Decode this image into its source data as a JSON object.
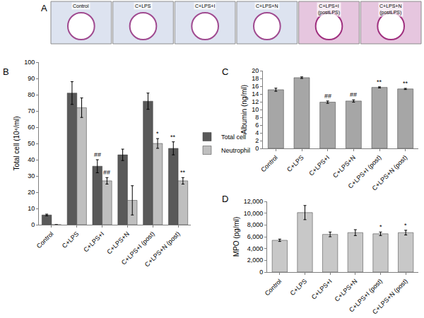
{
  "chart_data": [
    {
      "type": "bar",
      "panel_label": "B",
      "categories": [
        "Control",
        "C+LPS",
        "C+LPS+I",
        "C+LPS+N",
        "C+LPS+I (post)",
        "C+LPS+N (post)"
      ],
      "series": [
        {
          "name": "Total cell",
          "color": "#595959",
          "values": [
            6,
            81,
            36,
            43,
            76,
            47
          ],
          "errors": [
            0.5,
            7,
            4,
            3.5,
            5,
            4
          ]
        },
        {
          "name": "Neutrophil",
          "color": "#bfbfbf",
          "values": [
            0,
            72,
            27,
            15,
            50,
            27
          ],
          "errors": [
            0,
            6,
            2,
            9,
            3,
            2
          ]
        }
      ],
      "ylabel": "Total cell (10⁴/ml)",
      "ylim": [
        0,
        100
      ],
      "yticks": [
        0,
        10,
        20,
        30,
        40,
        50,
        60,
        70,
        80,
        90,
        100
      ],
      "grid": false,
      "legend": "right",
      "annotations": [
        {
          "category": "C+LPS+I",
          "series": "Total cell",
          "text": "##"
        },
        {
          "category": "C+LPS+I",
          "series": "Neutrophil",
          "text": "##"
        },
        {
          "category": "C+LPS+I (post)",
          "series": "Neutrophil",
          "text": "*"
        },
        {
          "category": "C+LPS+N (post)",
          "series": "Total cell",
          "text": "**"
        },
        {
          "category": "C+LPS+N (post)",
          "series": "Neutrophil",
          "text": "**"
        }
      ]
    },
    {
      "type": "bar",
      "panel_label": "C",
      "categories": [
        "Control",
        "C+LPS",
        "C+LPS+I",
        "C+LPS+N",
        "C+LPS+I (post)",
        "C+LPS+N (post)"
      ],
      "values": [
        15.1,
        18.2,
        11.9,
        12.2,
        15.7,
        15.3
      ],
      "errors": [
        0.4,
        0.2,
        0.3,
        0.3,
        0.15,
        0.15
      ],
      "color": "#a6a6a6",
      "ylabel": "Albumin (ng/ml)",
      "ylim": [
        0,
        20
      ],
      "yticks": [
        0,
        2,
        4,
        6,
        8,
        10,
        12,
        14,
        16,
        18,
        20
      ],
      "grid": false,
      "annotations": [
        {
          "category": "C+LPS+I",
          "text": "##"
        },
        {
          "category": "C+LPS+N",
          "text": "##"
        },
        {
          "category": "C+LPS+I (post)",
          "text": "**"
        },
        {
          "category": "C+LPS+N (post)",
          "text": "**"
        }
      ]
    },
    {
      "type": "bar",
      "panel_label": "D",
      "categories": [
        "Control",
        "C+LPS",
        "C+LPS+I",
        "C+LPS+N",
        "C+LPS+I (post)",
        "C+LPS+N (post)"
      ],
      "values": [
        5400,
        10100,
        6400,
        6700,
        6500,
        6700
      ],
      "errors": [
        200,
        1200,
        400,
        500,
        300,
        400
      ],
      "color": "#c8c8c8",
      "ylabel": "MPO (pg/ml)",
      "ylim": [
        0,
        12000
      ],
      "yticks": [
        0,
        {
          "value": 2000,
          "label": "2,000"
        },
        {
          "value": 4000,
          "label": "4,000"
        },
        {
          "value": 6000,
          "label": "6,000"
        },
        {
          "value": 8000,
          "label": "8,000"
        },
        {
          "value": 10000,
          "label": "10,000"
        },
        {
          "value": 12000,
          "label": "12,000"
        }
      ],
      "grid": false,
      "annotations": [
        {
          "category": "C+LPS+I (post)",
          "text": "*"
        },
        {
          "category": "C+LPS+N (post)",
          "text": "*"
        }
      ]
    }
  ],
  "images": {
    "panel_label": "A",
    "labels": [
      "Control",
      "C+LPS",
      "C+LPS+I",
      "C+LPS+N",
      "C+LPS+I (postLPS)",
      "C+LPS+N (postLPS)"
    ]
  }
}
